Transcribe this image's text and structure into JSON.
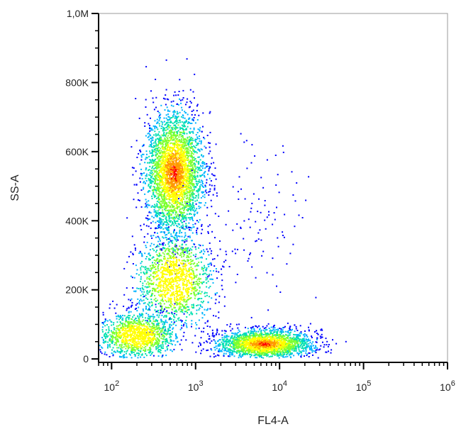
{
  "chart_data": {
    "type": "scatter",
    "subtype": "density-dot-plot",
    "title": "",
    "xlabel": "FL4-A",
    "ylabel": "SS-A",
    "x_scale": "log",
    "xlim": [
      70,
      1000000
    ],
    "ylim": [
      -10000,
      1000000
    ],
    "y_scale": "linear",
    "x_tick_labels": [
      {
        "value": 100,
        "base": "10",
        "exp": "2"
      },
      {
        "value": 1000,
        "base": "10",
        "exp": "3"
      },
      {
        "value": 10000,
        "base": "10",
        "exp": "4"
      },
      {
        "value": 100000,
        "base": "10",
        "exp": "5"
      },
      {
        "value": 1000000,
        "base": "10",
        "exp": "6"
      }
    ],
    "y_tick_labels": [
      {
        "value": 0,
        "label": "0"
      },
      {
        "value": 200000,
        "label": "200K"
      },
      {
        "value": 400000,
        "label": "400K"
      },
      {
        "value": 600000,
        "label": "600K"
      },
      {
        "value": 800000,
        "label": "800K"
      },
      {
        "value": 1000000,
        "label": "1,0M"
      }
    ],
    "density_colormap": [
      "#0000ff",
      "#00b4ff",
      "#00e0b0",
      "#7cff30",
      "#ffff00",
      "#ff9900",
      "#ff0000"
    ],
    "populations": [
      {
        "label": "",
        "x_center": 550,
        "y_center": 540000,
        "approx_events": 3200,
        "peak_density": "high"
      },
      {
        "label": "",
        "x_center": 550,
        "y_center": 230000,
        "approx_events": 1400,
        "peak_density": "medium"
      },
      {
        "label": "",
        "x_center": 200,
        "y_center": 70000,
        "approx_events": 1200,
        "peak_density": "medium"
      },
      {
        "label": "",
        "x_center": 6500,
        "y_center": 45000,
        "approx_events": 2200,
        "peak_density": "high"
      },
      {
        "label": "",
        "x_center": 4000,
        "y_center": 400000,
        "approx_events": 120,
        "peak_density": "low"
      }
    ],
    "grid": false,
    "legend": "none"
  }
}
